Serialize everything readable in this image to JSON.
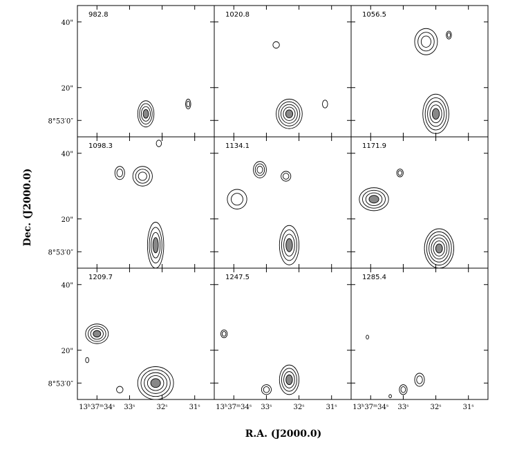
{
  "chart_data": {
    "type": "contour-grid",
    "xlabel": "R.A. (J2000.0)",
    "ylabel": "Dec. (J2000.0)",
    "grid": false,
    "rows": 3,
    "cols": 3,
    "xlim": [
      34.6,
      30.4
    ],
    "ylim": [
      5,
      45
    ],
    "x_tick_values": [
      34,
      33,
      32,
      31
    ],
    "x_tick_labels": [
      "13ʰ37ᵐ34ˢ",
      "33ˢ",
      "32ˢ",
      "31ˢ"
    ],
    "y_tick_values": [
      40,
      20,
      10
    ],
    "y_tick_labels": [
      "40\"",
      "20\"",
      "8°53′0″"
    ],
    "panels": [
      {
        "label": "982.8",
        "blobs": [
          {
            "x": 32.5,
            "y": 12,
            "rx": 0.25,
            "ry": 4,
            "n": 4
          },
          {
            "x": 31.2,
            "y": 15,
            "rx": 0.08,
            "ry": 1.5,
            "n": 2
          }
        ]
      },
      {
        "label": "1020.8",
        "blobs": [
          {
            "x": 32.7,
            "y": 33,
            "rx": 0.1,
            "ry": 1,
            "n": 1
          },
          {
            "x": 32.3,
            "y": 12,
            "rx": 0.4,
            "ry": 4.5,
            "n": 5
          },
          {
            "x": 31.2,
            "y": 15,
            "rx": 0.08,
            "ry": 1.2,
            "n": 1
          }
        ]
      },
      {
        "label": "1056.5",
        "blobs": [
          {
            "x": 32.3,
            "y": 34,
            "rx": 0.35,
            "ry": 4,
            "n": 3
          },
          {
            "x": 31.6,
            "y": 36,
            "rx": 0.08,
            "ry": 1.2,
            "n": 2
          },
          {
            "x": 32.0,
            "y": 12,
            "rx": 0.4,
            "ry": 6,
            "n": 5
          }
        ]
      },
      {
        "label": "1098.3",
        "blobs": [
          {
            "x": 33.3,
            "y": 34,
            "rx": 0.15,
            "ry": 2,
            "n": 2
          },
          {
            "x": 32.6,
            "y": 33,
            "rx": 0.3,
            "ry": 3,
            "n": 3
          },
          {
            "x": 32.1,
            "y": 43,
            "rx": 0.08,
            "ry": 1,
            "n": 1
          },
          {
            "x": 32.2,
            "y": 12,
            "rx": 0.25,
            "ry": 7,
            "n": 4
          }
        ]
      },
      {
        "label": "1134.1",
        "blobs": [
          {
            "x": 33.9,
            "y": 26,
            "rx": 0.3,
            "ry": 3,
            "n": 2
          },
          {
            "x": 33.2,
            "y": 35,
            "rx": 0.2,
            "ry": 2.5,
            "n": 3
          },
          {
            "x": 32.4,
            "y": 33,
            "rx": 0.15,
            "ry": 1.5,
            "n": 2
          },
          {
            "x": 32.3,
            "y": 12,
            "rx": 0.3,
            "ry": 6,
            "n": 4
          }
        ]
      },
      {
        "label": "1171.9",
        "blobs": [
          {
            "x": 33.9,
            "y": 26,
            "rx": 0.45,
            "ry": 3.5,
            "n": 4
          },
          {
            "x": 33.1,
            "y": 34,
            "rx": 0.1,
            "ry": 1.2,
            "n": 2
          },
          {
            "x": 31.9,
            "y": 11,
            "rx": 0.45,
            "ry": 6,
            "n": 6
          }
        ]
      },
      {
        "label": "1209.7",
        "blobs": [
          {
            "x": 34.0,
            "y": 25,
            "rx": 0.35,
            "ry": 3,
            "n": 4
          },
          {
            "x": 34.3,
            "y": 17,
            "rx": 0.05,
            "ry": 0.8,
            "n": 1
          },
          {
            "x": 32.2,
            "y": 10,
            "rx": 0.55,
            "ry": 5,
            "n": 5
          },
          {
            "x": 33.3,
            "y": 8,
            "rx": 0.1,
            "ry": 1,
            "n": 1
          }
        ]
      },
      {
        "label": "1247.5",
        "blobs": [
          {
            "x": 34.3,
            "y": 25,
            "rx": 0.1,
            "ry": 1.2,
            "n": 2
          },
          {
            "x": 33.0,
            "y": 8,
            "rx": 0.15,
            "ry": 1.5,
            "n": 2
          },
          {
            "x": 32.3,
            "y": 11,
            "rx": 0.3,
            "ry": 4.5,
            "n": 4
          }
        ]
      },
      {
        "label": "1285.4",
        "blobs": [
          {
            "x": 34.1,
            "y": 24,
            "rx": 0.04,
            "ry": 0.6,
            "n": 1
          },
          {
            "x": 33.0,
            "y": 8,
            "rx": 0.12,
            "ry": 1.5,
            "n": 2
          },
          {
            "x": 32.5,
            "y": 11,
            "rx": 0.15,
            "ry": 2,
            "n": 2
          },
          {
            "x": 33.4,
            "y": 6,
            "rx": 0.04,
            "ry": 0.5,
            "n": 1
          }
        ]
      }
    ]
  }
}
